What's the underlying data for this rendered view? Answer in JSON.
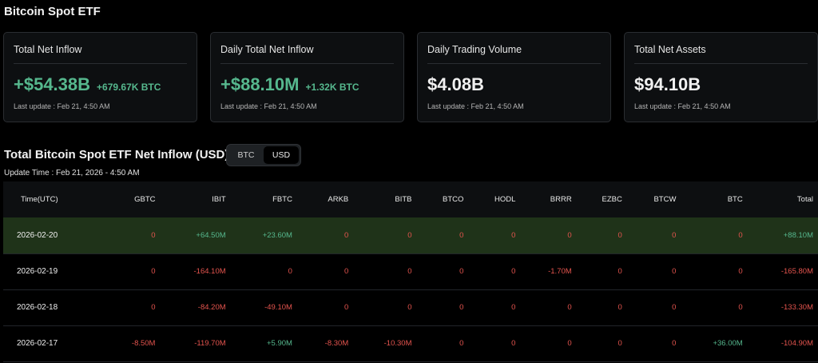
{
  "page_title": "Bitcoin Spot ETF",
  "cards": [
    {
      "title": "Total Net Inflow",
      "value": "+$54.38B",
      "sub": "+679.67K BTC",
      "update": "Last update : Feb 21, 4:50 AM",
      "tone": "green"
    },
    {
      "title": "Daily Total Net Inflow",
      "value": "+$88.10M",
      "sub": "+1.32K BTC",
      "update": "Last update : Feb 21, 4:50 AM",
      "tone": "green"
    },
    {
      "title": "Daily Trading Volume",
      "value": "$4.08B",
      "sub": "",
      "update": "Last update : Feb 21, 4:50 AM",
      "tone": "white"
    },
    {
      "title": "Total Net Assets",
      "value": "$94.10B",
      "sub": "",
      "update": "Last update : Feb 21, 4:50 AM",
      "tone": "white"
    }
  ],
  "section_title": "Total Bitcoin Spot ETF Net Inflow (USD)",
  "toggle": {
    "options": [
      "BTC",
      "USD"
    ],
    "active": "USD"
  },
  "update_time": "Update Time : Feb 21, 2026 - 4:50 AM",
  "table": {
    "headers": [
      "Time(UTC)",
      "GBTC",
      "IBIT",
      "FBTC",
      "ARKB",
      "BITB",
      "BTCO",
      "HODL",
      "BRRR",
      "EZBC",
      "BTCW",
      "BTC",
      "Total"
    ],
    "rows": [
      {
        "highlight": true,
        "cells": [
          "2026-02-20",
          "0",
          "+64.50M",
          "+23.60M",
          "0",
          "0",
          "0",
          "0",
          "0",
          "0",
          "0",
          "0",
          "+88.10M"
        ]
      },
      {
        "highlight": false,
        "cells": [
          "2026-02-19",
          "0",
          "-164.10M",
          "0",
          "0",
          "0",
          "0",
          "0",
          "-1.70M",
          "0",
          "0",
          "0",
          "-165.80M"
        ]
      },
      {
        "highlight": false,
        "cells": [
          "2026-02-18",
          "0",
          "-84.20M",
          "-49.10M",
          "0",
          "0",
          "0",
          "0",
          "0",
          "0",
          "0",
          "0",
          "-133.30M"
        ]
      },
      {
        "highlight": false,
        "cells": [
          "2026-02-17",
          "-8.50M",
          "-119.70M",
          "+5.90M",
          "-8.30M",
          "-10.30M",
          "0",
          "0",
          "0",
          "0",
          "0",
          "+36.00M",
          "-104.90M"
        ]
      }
    ]
  },
  "colors": {
    "positive": "#56b88e",
    "negative": "#e5544e",
    "highlight_row": "#1f3319"
  }
}
